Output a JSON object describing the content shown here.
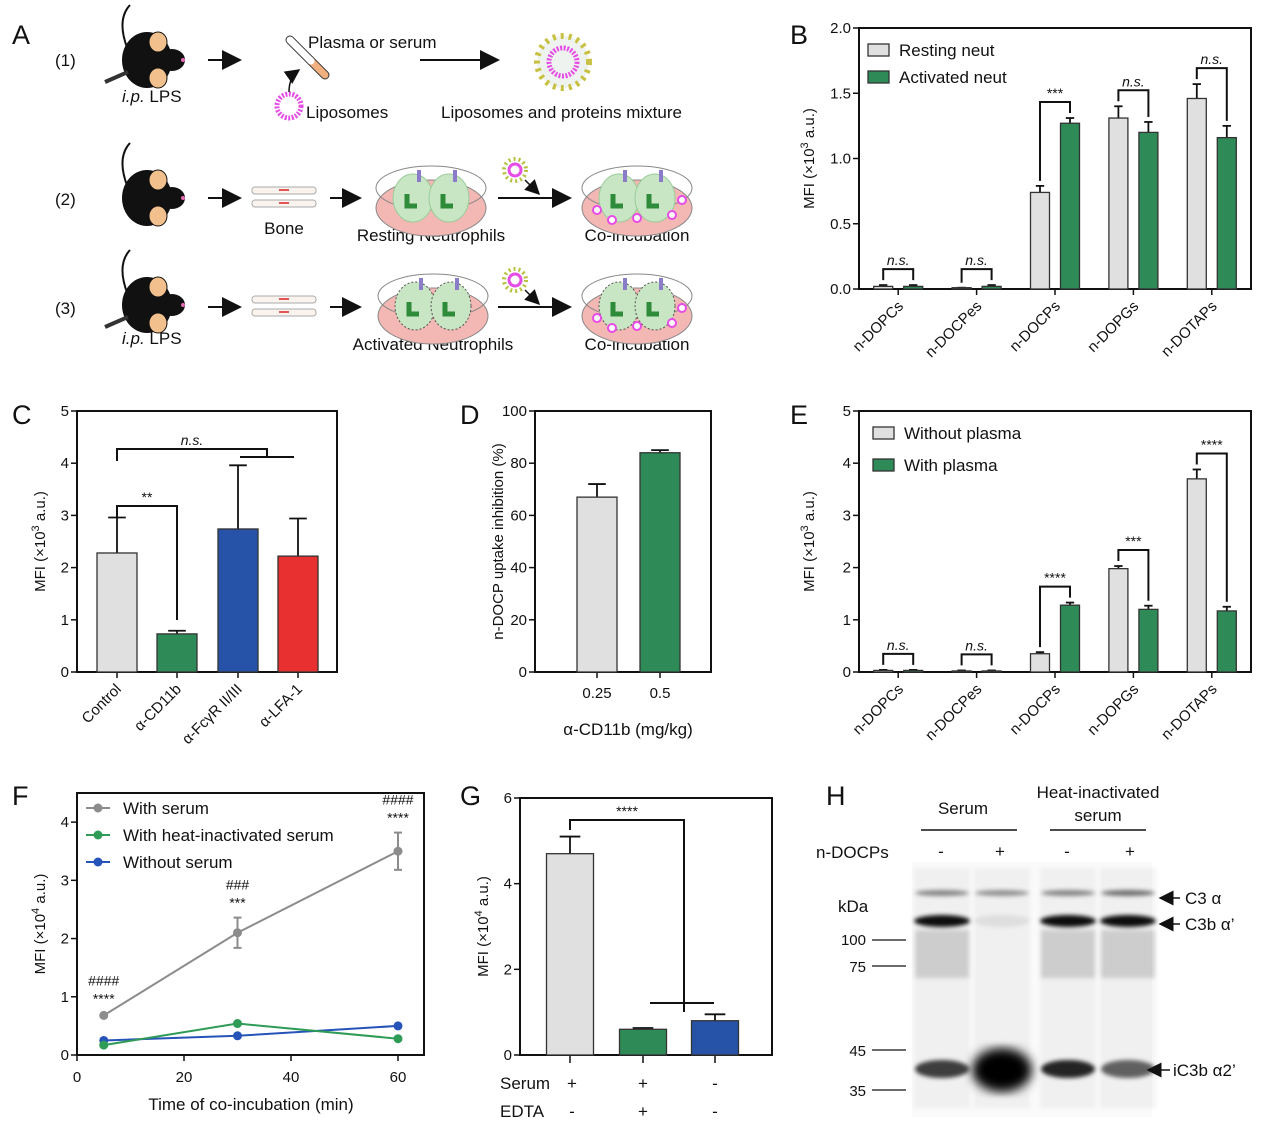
{
  "panel_letters": [
    "A",
    "B",
    "C",
    "D",
    "E",
    "F",
    "G",
    "H"
  ],
  "schematic": {
    "rows": [
      "(1)",
      "(2)",
      "(3)"
    ],
    "ip_lps_italic": "i.p.",
    "ip_lps_rest": " LPS",
    "plasma_or_serum": "Plasma or serum",
    "liposomes": "Liposomes",
    "mixture": "Liposomes and proteins mixture",
    "bone": "Bone",
    "resting_neutrophils": "Resting Neutrophils",
    "activated_neutrophils": "Activated Neutrophils",
    "coincubation": "Co-incubation",
    "colors": {
      "liposome": "#e64ce6",
      "dish": "#f4b8b4",
      "cell": "#c8e6c4",
      "nucleus": "#2e8b3a",
      "mouse_ear": "#f2c08c"
    }
  },
  "chart_data": [
    {
      "panel": "B",
      "type": "bar",
      "ylabel_parts": [
        "MFI (×10",
        "3",
        " a.u.)"
      ],
      "ylim": [
        0,
        2.0
      ],
      "yticks": [
        "0.0",
        "0.5",
        "1.0",
        "1.5",
        "2.0"
      ],
      "categories": [
        "n-DOPCs",
        "n-DOCPes",
        "n-DOCPs",
        "n-DOPGs",
        "n-DOTAPs"
      ],
      "legend": "top-left",
      "series": [
        {
          "name": "Resting neut",
          "color": "#e0e0e0",
          "values": [
            0.02,
            0.01,
            0.74,
            1.31,
            1.46
          ],
          "errors": [
            0.01,
            0.0,
            0.05,
            0.09,
            0.11
          ]
        },
        {
          "name": "Activated neut",
          "color": "#2e8b57",
          "values": [
            0.02,
            0.02,
            1.27,
            1.2,
            1.16
          ],
          "errors": [
            0.01,
            0.01,
            0.04,
            0.08,
            0.09
          ]
        }
      ],
      "significance": [
        "n.s.",
        "n.s.",
        "***",
        "n.s.",
        "n.s."
      ]
    },
    {
      "panel": "C",
      "type": "bar",
      "ylabel_parts": [
        "MFI (×10",
        "3",
        " a.u.)"
      ],
      "ylim": [
        0,
        5
      ],
      "yticks": [
        "0",
        "1",
        "2",
        "3",
        "4",
        "5"
      ],
      "categories": [
        "Control",
        "α-CD11b",
        "α-FcγR II/III",
        "α-LFA-1"
      ],
      "values": [
        2.28,
        0.73,
        2.74,
        2.22
      ],
      "errors": [
        0.68,
        0.06,
        1.22,
        0.72
      ],
      "colors": [
        "#e0e0e0",
        "#2e8b57",
        "#2653a8",
        "#e83030"
      ],
      "significance": {
        "control_vs_cd11b": "**",
        "control_vs_others": "n.s."
      }
    },
    {
      "panel": "D",
      "type": "bar",
      "ylabel": "n-DOCP uptake inhibition (%)",
      "xlabel": "α-CD11b (mg/kg)",
      "ylim": [
        0,
        100
      ],
      "yticks": [
        "0",
        "20",
        "40",
        "60",
        "80",
        "100"
      ],
      "categories": [
        "0.25",
        "0.5"
      ],
      "values": [
        67,
        84
      ],
      "errors": [
        5,
        1
      ],
      "colors": [
        "#e0e0e0",
        "#2e8b57"
      ]
    },
    {
      "panel": "E",
      "type": "bar",
      "ylabel_parts": [
        "MFI (×10",
        "3",
        " a.u.)"
      ],
      "ylim": [
        0,
        5
      ],
      "yticks": [
        "0",
        "1",
        "2",
        "3",
        "4",
        "5"
      ],
      "categories": [
        "n-DOPCs",
        "n-DOCPes",
        "n-DOCPs",
        "n-DOPGs",
        "n-DOTAPs"
      ],
      "legend": "top-left",
      "series": [
        {
          "name": "Without plasma",
          "color": "#e0e0e0",
          "values": [
            0.03,
            0.02,
            0.35,
            1.98,
            3.7
          ],
          "errors": [
            0.01,
            0.01,
            0.03,
            0.05,
            0.18
          ]
        },
        {
          "name": "With plasma",
          "color": "#2e8b57",
          "values": [
            0.03,
            0.02,
            1.28,
            1.2,
            1.17
          ],
          "errors": [
            0.01,
            0.01,
            0.05,
            0.07,
            0.08
          ]
        }
      ],
      "significance": [
        "n.s.",
        "n.s.",
        "****",
        "***",
        "****"
      ]
    },
    {
      "panel": "F",
      "type": "line",
      "ylabel_parts": [
        "MFI (×10",
        "4",
        " a.u.)"
      ],
      "xlabel": "Time of co-incubation (min)",
      "xlim": [
        0,
        65
      ],
      "xticks": [
        "0",
        "20",
        "40",
        "60"
      ],
      "ylim": [
        0,
        4.5
      ],
      "yticks": [
        "0",
        "1",
        "2",
        "3",
        "4"
      ],
      "x": [
        5,
        30,
        60
      ],
      "legend": "top-left",
      "series": [
        {
          "name": "With serum",
          "color": "#8c8c8c",
          "values": [
            0.68,
            2.1,
            3.5
          ],
          "errors": [
            0.03,
            0.26,
            0.32
          ]
        },
        {
          "name": "With heat-inactivated serum",
          "color": "#2e9b57",
          "values": [
            0.17,
            0.54,
            0.28
          ],
          "errors": [
            0,
            0,
            0
          ]
        },
        {
          "name": "Without serum",
          "color": "#2653b8",
          "values": [
            0.25,
            0.33,
            0.5
          ],
          "errors": [
            0,
            0,
            0
          ]
        }
      ],
      "annotations": [
        {
          "hash": "####",
          "stars": "****"
        },
        {
          "hash": "###",
          "stars": "***"
        },
        {
          "hash": "####",
          "stars": "****"
        }
      ]
    },
    {
      "panel": "G",
      "type": "bar",
      "ylabel_parts": [
        "MFI (×10",
        "4",
        " a.u.)"
      ],
      "ylim": [
        0,
        6
      ],
      "yticks": [
        "0",
        "2",
        "4",
        "6"
      ],
      "row_labels": [
        "Serum",
        "EDTA"
      ],
      "conditions": [
        [
          "+",
          "-"
        ],
        [
          "+",
          "+"
        ],
        [
          "-",
          "-"
        ]
      ],
      "values": [
        4.7,
        0.6,
        0.8
      ],
      "errors": [
        0.4,
        0.03,
        0.15
      ],
      "colors": [
        "#e0e0e0",
        "#2e8b57",
        "#2653a8"
      ],
      "significance": "****"
    }
  ],
  "western_blot": {
    "group_labels": [
      "Serum",
      "Heat-inactivated",
      "serum"
    ],
    "row_label": "n-DOCPs",
    "lanes": [
      "-",
      "+",
      "-",
      "+"
    ],
    "kda_label": "kDa",
    "markers": [
      "100",
      "75",
      "45",
      "35"
    ],
    "bands": [
      "C3 α",
      "C3b α’",
      "iC3b α2’"
    ]
  }
}
